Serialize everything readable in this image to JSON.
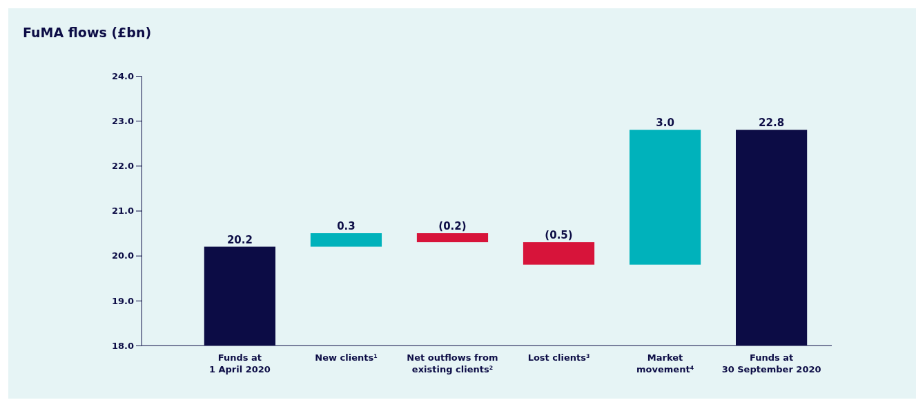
{
  "chart_data": {
    "type": "bar",
    "title": "FuMA flows (£bn)",
    "categories": [
      "Funds at\n1 April 2020",
      "New clients$^{1}$",
      "Net outflows from\nexisting clients$^{2}$",
      "Lost clients$^{3}$",
      "Market\nmovement$^{4}$",
      "Funds at\n30 September 2020"
    ],
    "values": [
      20.2,
      0.3,
      -0.2,
      -0.5,
      3.0,
      22.8
    ],
    "base": [
      null,
      20.2,
      20.5,
      20.3,
      19.8,
      null
    ],
    "colors": [
      "#0c0c45",
      "#00b2bb",
      "#d7143a",
      "#d7143a",
      "#00b2bb",
      "#0c0c45"
    ],
    "value_labels": [
      "20.2",
      "0.3",
      "(0.2)",
      "(0.5)",
      "3.0",
      "22.8"
    ],
    "ylim": [
      18,
      24
    ],
    "yticks": [
      {
        "value": 18,
        "label": "18.0"
      },
      {
        "value": 19,
        "label": "19.0"
      },
      {
        "value": 20,
        "label": "20.0"
      },
      {
        "value": 21,
        "label": "21.0"
      },
      {
        "value": 22,
        "label": "22.0"
      },
      {
        "value": 23,
        "label": "23.0"
      },
      {
        "value": 24,
        "label": "24.0"
      }
    ]
  }
}
